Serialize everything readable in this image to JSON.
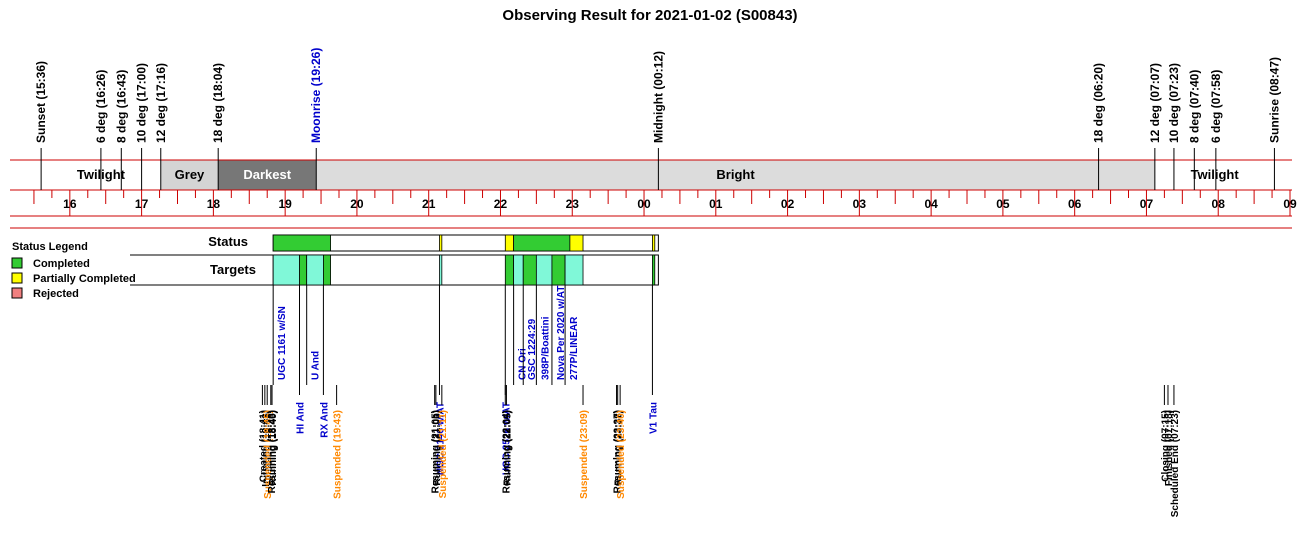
{
  "title": "Observing Result for 2021-01-02 (S00843)",
  "colors": {
    "completed": "#33cc33",
    "partial": "#ffff00",
    "rejected": "#f08080",
    "target_fill": "#80f8d8",
    "twilight": "#ffffff",
    "grey": "#d4d4d4",
    "darkest": "#777777",
    "bright": "#dcdcdc",
    "axis_red": "#cc0000",
    "label_blue": "#0000cc",
    "label_orange": "#ff8800"
  },
  "chart_data": {
    "type": "timeline",
    "x_unit": "hour",
    "x_range": [
      15.25,
      33.0
    ],
    "hour_ticks": [
      "16",
      "17",
      "18",
      "19",
      "20",
      "21",
      "22",
      "23",
      "00",
      "01",
      "02",
      "03",
      "04",
      "05",
      "06",
      "07",
      "08",
      "09"
    ],
    "sky_markers": [
      {
        "label": "Sunset (15:36)",
        "t": 15.6,
        "color": "black"
      },
      {
        "label": "6 deg (16:26)",
        "t": 16.433,
        "color": "black"
      },
      {
        "label": "8 deg (16:43)",
        "t": 16.717,
        "color": "black"
      },
      {
        "label": "10 deg (17:00)",
        "t": 17.0,
        "color": "black"
      },
      {
        "label": "12 deg (17:16)",
        "t": 17.267,
        "color": "black"
      },
      {
        "label": "18 deg (18:04)",
        "t": 18.067,
        "color": "black"
      },
      {
        "label": "Moonrise (19:26)",
        "t": 19.433,
        "color": "blue"
      },
      {
        "label": "Midnight (00:12)",
        "t": 24.2,
        "color": "black"
      },
      {
        "label": "18 deg (06:20)",
        "t": 30.333,
        "color": "black"
      },
      {
        "label": "12 deg (07:07)",
        "t": 31.117,
        "color": "black"
      },
      {
        "label": "10 deg (07:23)",
        "t": 31.383,
        "color": "black"
      },
      {
        "label": "8 deg (07:40)",
        "t": 31.667,
        "color": "black"
      },
      {
        "label": "6 deg (07:58)",
        "t": 31.967,
        "color": "black"
      },
      {
        "label": "Sunrise (08:47)",
        "t": 32.783,
        "color": "black"
      }
    ],
    "sky_bands": [
      {
        "label": "Twilight",
        "start": 15.6,
        "end": 17.267,
        "color_key": "twilight",
        "text_color": "#000000"
      },
      {
        "label": "Grey",
        "start": 17.267,
        "end": 18.067,
        "color_key": "grey",
        "text_color": "#000000"
      },
      {
        "label": "Darkest",
        "start": 18.067,
        "end": 19.433,
        "color_key": "darkest",
        "text_color": "#ffffff"
      },
      {
        "label": "Bright",
        "start": 19.433,
        "end": 31.117,
        "color_key": "bright",
        "text_color": "#000000"
      },
      {
        "label": "Twilight",
        "start": 31.117,
        "end": 32.783,
        "color_key": "twilight",
        "text_color": "#000000"
      }
    ],
    "legend": {
      "title": "Status Legend",
      "items": [
        {
          "label": "Completed",
          "color_key": "completed"
        },
        {
          "label": "Partially Completed",
          "color_key": "partial"
        },
        {
          "label": "Rejected",
          "color_key": "rejected"
        }
      ]
    },
    "row_labels": {
      "status": "Status",
      "targets": "Targets"
    },
    "rows_extent": [
      18.833,
      24.2
    ],
    "status_segments": [
      {
        "start": 18.833,
        "end": 19.633,
        "color_key": "completed"
      },
      {
        "start": 21.15,
        "end": 21.183,
        "color_key": "partial"
      },
      {
        "start": 22.067,
        "end": 22.183,
        "color_key": "partial"
      },
      {
        "start": 22.183,
        "end": 22.967,
        "color_key": "completed"
      },
      {
        "start": 22.967,
        "end": 23.15,
        "color_key": "partial"
      },
      {
        "start": 24.117,
        "end": 24.15,
        "color_key": "partial"
      }
    ],
    "target_segments": [
      {
        "start": 18.833,
        "end": 19.2,
        "color_key": "target_fill"
      },
      {
        "start": 19.2,
        "end": 19.3,
        "color_key": "completed"
      },
      {
        "start": 19.3,
        "end": 19.533,
        "color_key": "target_fill"
      },
      {
        "start": 19.533,
        "end": 19.633,
        "color_key": "completed"
      },
      {
        "start": 21.15,
        "end": 21.183,
        "color_key": "target_fill"
      },
      {
        "start": 22.067,
        "end": 22.183,
        "color_key": "completed"
      },
      {
        "start": 22.183,
        "end": 22.317,
        "color_key": "target_fill"
      },
      {
        "start": 22.317,
        "end": 22.5,
        "color_key": "completed"
      },
      {
        "start": 22.5,
        "end": 22.717,
        "color_key": "target_fill"
      },
      {
        "start": 22.717,
        "end": 22.9,
        "color_key": "completed"
      },
      {
        "start": 22.9,
        "end": 23.15,
        "color_key": "target_fill"
      },
      {
        "start": 24.117,
        "end": 24.15,
        "color_key": "completed"
      }
    ],
    "targets": [
      {
        "label": "UGC 1161 w/SN",
        "t": 18.833,
        "side": "below"
      },
      {
        "label": "U And",
        "t": 19.3,
        "side": "below"
      },
      {
        "label": "HI And",
        "t": 19.2,
        "side": "event"
      },
      {
        "label": "RX And",
        "t": 19.533,
        "side": "event"
      },
      {
        "label": "NGC 2146 w/AT",
        "t": 21.15,
        "side": "event"
      },
      {
        "label": "CN Ori",
        "t": 22.183,
        "side": "below"
      },
      {
        "label": "UGC 2526 w/AT",
        "t": 22.067,
        "side": "event"
      },
      {
        "label": "GSC 1224:29",
        "t": 22.317,
        "side": "below"
      },
      {
        "label": "398P/Boattini",
        "t": 22.5,
        "side": "below"
      },
      {
        "label": "Nova Per 2020 w/AT",
        "t": 22.717,
        "side": "below"
      },
      {
        "label": "277P/LINEAR",
        "t": 22.9,
        "side": "below"
      },
      {
        "label": "V1 Tau",
        "t": 24.117,
        "side": "event"
      }
    ],
    "events": [
      {
        "label": "Created (18:41)",
        "t": 18.683,
        "color": "black"
      },
      {
        "label": "Initiating (18:43)",
        "t": 18.717,
        "color": "black"
      },
      {
        "label": "Suspended (18:45)",
        "t": 18.75,
        "color": "orange"
      },
      {
        "label": "Resuming (18:48)",
        "t": 18.8,
        "color": "black"
      },
      {
        "label": "Running (18:49)",
        "t": 18.817,
        "color": "black"
      },
      {
        "label": "Suspended (19:43)",
        "t": 19.717,
        "color": "orange"
      },
      {
        "label": "Resuming (21:05)",
        "t": 21.083,
        "color": "black"
      },
      {
        "label": "Running (21:06)",
        "t": 21.1,
        "color": "black"
      },
      {
        "label": "Suspended (21:11)",
        "t": 21.183,
        "color": "orange"
      },
      {
        "label": "Resuming (22:04)",
        "t": 22.067,
        "color": "black"
      },
      {
        "label": "Running (22:05)",
        "t": 22.083,
        "color": "black"
      },
      {
        "label": "Suspended (23:09)",
        "t": 23.15,
        "color": "orange"
      },
      {
        "label": "Resuming (23:37)",
        "t": 23.617,
        "color": "black"
      },
      {
        "label": "Running (23:38)",
        "t": 23.633,
        "color": "black"
      },
      {
        "label": "Suspended (23:40)",
        "t": 23.667,
        "color": "orange"
      },
      {
        "label": "Closing (07:15)",
        "t": 31.25,
        "color": "black"
      },
      {
        "label": "Finished (07:18)",
        "t": 31.3,
        "color": "black"
      },
      {
        "label": "Scheduled End (07:23)",
        "t": 31.383,
        "color": "black"
      }
    ]
  }
}
